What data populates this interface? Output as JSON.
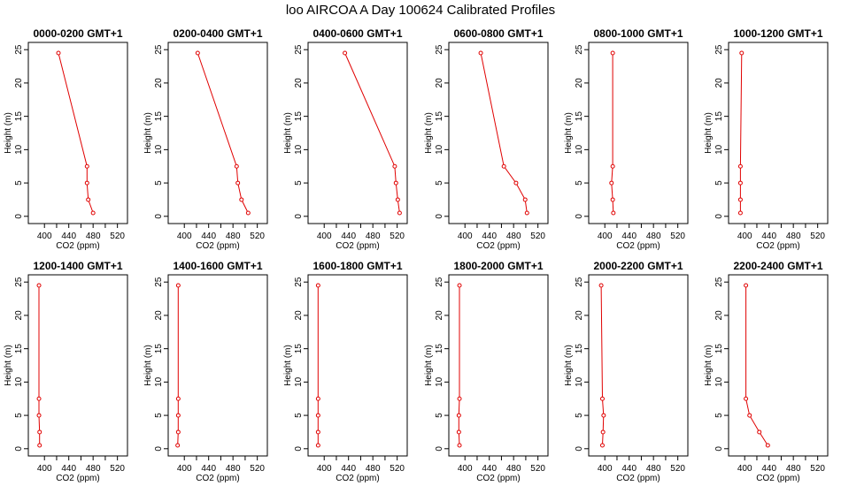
{
  "chart_title": "loo AIRCOA A  Day 100624  Calibrated Profiles",
  "chart_data": {
    "type": "line",
    "xlabel": "CO2 (ppm)",
    "ylabel": "Height (m)",
    "xlim": [
      380,
      530
    ],
    "ylim": [
      0,
      25
    ],
    "xticks": [
      400,
      420,
      440,
      460,
      480,
      500,
      520
    ],
    "yticks": [
      0,
      5,
      10,
      15,
      20,
      25
    ],
    "heights": [
      0.5,
      2.5,
      5,
      7.5,
      24.5
    ],
    "series_color": "#e00000",
    "panels": [
      {
        "title": "0000-0200 GMT+1",
        "co2": [
          480,
          472,
          470,
          470,
          423
        ]
      },
      {
        "title": "0200-0400 GMT+1",
        "co2": [
          505,
          494,
          488,
          486,
          422
        ]
      },
      {
        "title": "0400-0600 GMT+1",
        "co2": [
          524,
          521,
          518,
          516,
          434
        ]
      },
      {
        "title": "0600-0800 GMT+1",
        "co2": [
          502,
          499,
          484,
          464,
          426
        ]
      },
      {
        "title": "0800-1000 GMT+1",
        "co2": [
          414,
          413,
          411,
          413,
          413
        ]
      },
      {
        "title": "1000-1200 GMT+1",
        "co2": [
          393,
          393,
          393,
          393,
          395
        ]
      },
      {
        "title": "1200-1400 GMT+1",
        "co2": [
          392,
          392,
          391,
          391,
          391
        ]
      },
      {
        "title": "1400-1600 GMT+1",
        "co2": [
          389,
          390,
          390,
          390,
          390
        ]
      },
      {
        "title": "1600-1800 GMT+1",
        "co2": [
          390,
          390,
          390,
          390,
          390
        ]
      },
      {
        "title": "1800-2000 GMT+1",
        "co2": [
          391,
          390,
          390,
          391,
          391
        ]
      },
      {
        "title": "2000-2200 GMT+1",
        "co2": [
          396,
          397,
          398,
          396,
          394
        ]
      },
      {
        "title": "2200-2400 GMT+1",
        "co2": [
          438,
          424,
          408,
          402,
          402
        ]
      }
    ]
  }
}
